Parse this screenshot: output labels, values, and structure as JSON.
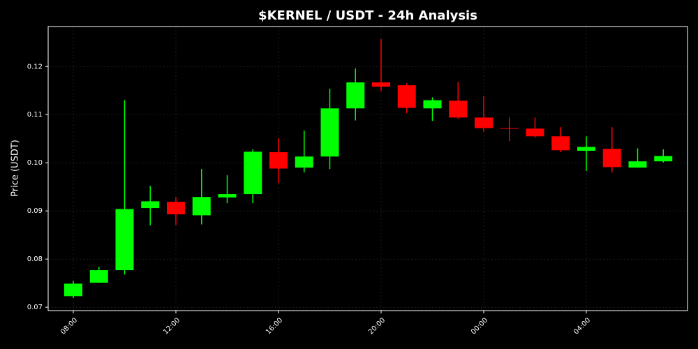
{
  "chart_data": {
    "type": "candlestick",
    "title": "$KERNEL / USDT - 24h Analysis",
    "y_label": "Price (USDT)",
    "categories": [
      "08:00",
      null,
      null,
      null,
      "12:00",
      null,
      null,
      null,
      "16:00",
      null,
      null,
      null,
      "20:00",
      null,
      null,
      null,
      "00:00",
      null,
      null,
      null,
      "04:00",
      null,
      null,
      null
    ],
    "open": [
      0.0723,
      0.0751,
      0.0777,
      0.0906,
      0.0919,
      0.0891,
      0.0928,
      0.0935,
      0.1022,
      0.099,
      0.1013,
      0.1113,
      0.1167,
      0.1161,
      0.1113,
      0.1129,
      0.1094,
      0.1072,
      0.1071,
      0.1055,
      0.1025,
      0.1029,
      0.099,
      0.1003
    ],
    "high": [
      0.0755,
      0.0784,
      0.113,
      0.0952,
      0.0929,
      0.0987,
      0.0974,
      0.1028,
      0.1051,
      0.1067,
      0.1154,
      0.1196,
      0.1257,
      0.1165,
      0.1136,
      0.1168,
      0.1139,
      0.1094,
      0.1094,
      0.1074,
      0.1055,
      0.1074,
      0.103,
      0.1028
    ],
    "low": [
      0.0719,
      0.0751,
      0.0768,
      0.087,
      0.0871,
      0.0872,
      0.0916,
      0.0916,
      0.0958,
      0.098,
      0.0987,
      0.1088,
      0.1148,
      0.1103,
      0.1087,
      0.1091,
      0.1064,
      0.1045,
      0.1052,
      0.1022,
      0.0983,
      0.098,
      0.099,
      0.1001
    ],
    "close": [
      0.0749,
      0.0777,
      0.0904,
      0.092,
      0.0893,
      0.0929,
      0.0935,
      0.1023,
      0.0988,
      0.1013,
      0.1113,
      0.1167,
      0.1158,
      0.1114,
      0.113,
      0.1094,
      0.1072,
      0.1071,
      0.1055,
      0.1026,
      0.1033,
      0.0991,
      0.1003,
      0.1014
    ],
    "up_color": "#00ff00",
    "down_color": "#ff0000",
    "ylim": [
      0.0693,
      0.1283
    ],
    "yticks": [
      0.07,
      0.08,
      0.09,
      {
        "value": 0.1,
        "label": "0.10"
      },
      0.11,
      0.12
    ],
    "grid": true
  }
}
